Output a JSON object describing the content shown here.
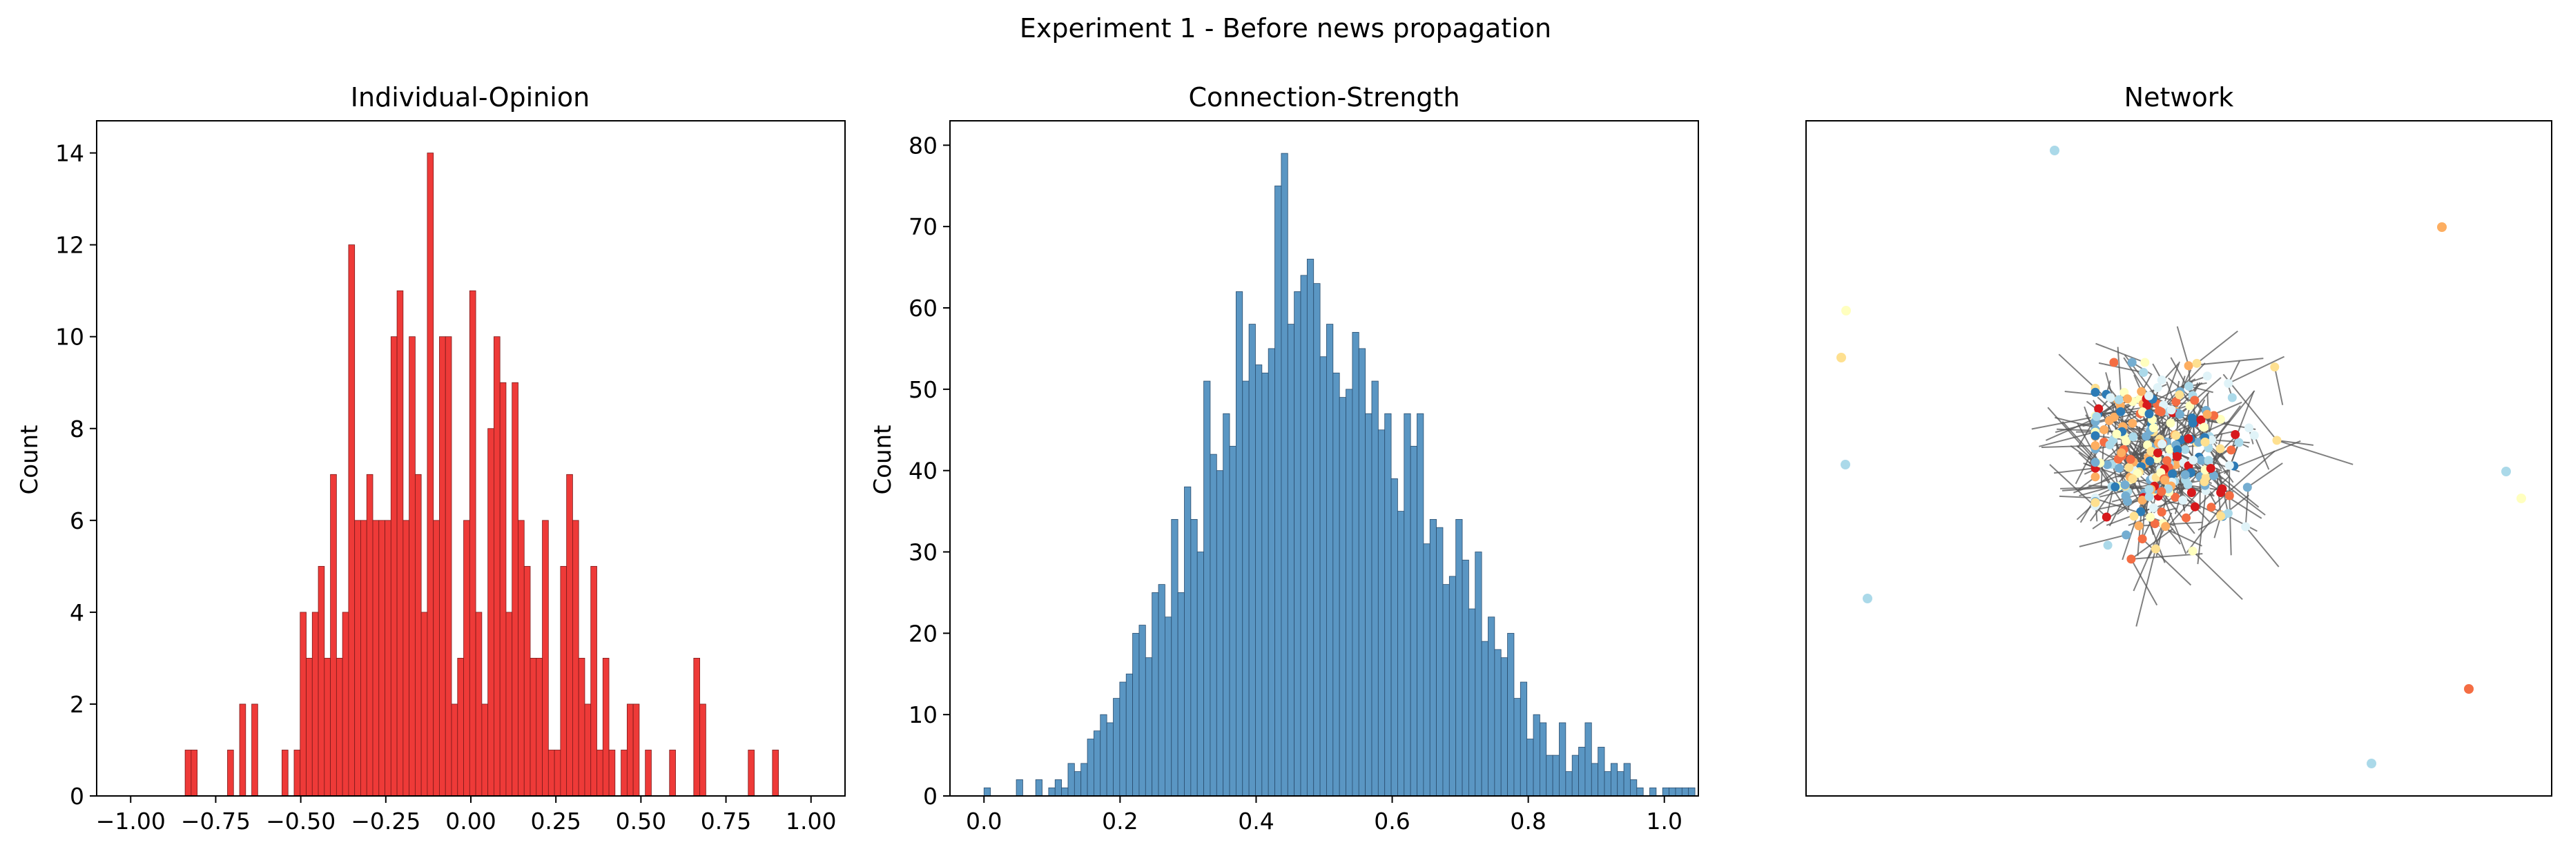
{
  "figure": {
    "suptitle": "Experiment 1 - Before news propagation"
  },
  "chart_data": [
    {
      "type": "bar",
      "title": "Individual-Opinion",
      "xlabel": "",
      "ylabel": "Count",
      "xlim": [
        -1.1,
        1.1
      ],
      "ylim": [
        0,
        14.7
      ],
      "xticks": [
        -1.0,
        -0.75,
        -0.5,
        -0.25,
        0.0,
        0.25,
        0.5,
        0.75,
        1.0
      ],
      "xtick_labels": [
        "−1.00",
        "−0.75",
        "−0.50",
        "−0.25",
        "0.00",
        "0.25",
        "0.50",
        "0.75",
        "1.00"
      ],
      "yticks": [
        0,
        2,
        4,
        6,
        8,
        10,
        12,
        14
      ],
      "ytick_labels": [
        "0",
        "2",
        "4",
        "6",
        "8",
        "10",
        "12",
        "14"
      ],
      "bar_color": "#ee3a38",
      "edge_color": "#7a1a1a",
      "grid": false,
      "bins": {
        "start": -0.84,
        "width": 0.0178,
        "counts": [
          1,
          1,
          0,
          0,
          0,
          0,
          0,
          1,
          0,
          2,
          0,
          2,
          0,
          0,
          0,
          0,
          1,
          0,
          1,
          4,
          3,
          4,
          5,
          3,
          7,
          3,
          4,
          12,
          6,
          6,
          7,
          6,
          6,
          6,
          10,
          11,
          6,
          10,
          7,
          4,
          14,
          6,
          10,
          10,
          2,
          3,
          6,
          11,
          4,
          2,
          8,
          10,
          9,
          4,
          9,
          6,
          5,
          3,
          3,
          6,
          1,
          1,
          5,
          7,
          6,
          3,
          2,
          5,
          1,
          3,
          1,
          0,
          1,
          2,
          2,
          0,
          1,
          0,
          0,
          0,
          1,
          0,
          0,
          0,
          3,
          2,
          0,
          0,
          0,
          0,
          0,
          0,
          0,
          1,
          0,
          0,
          0,
          1
        ]
      }
    },
    {
      "type": "bar",
      "title": "Connection-Strength",
      "xlabel": "",
      "ylabel": "Count",
      "xlim": [
        -0.05,
        1.05
      ],
      "ylim": [
        0,
        83
      ],
      "xticks": [
        0.0,
        0.2,
        0.4,
        0.6,
        0.8,
        1.0
      ],
      "xtick_labels": [
        "0.0",
        "0.2",
        "0.4",
        "0.6",
        "0.8",
        "1.0"
      ],
      "yticks": [
        0,
        10,
        20,
        30,
        40,
        50,
        60,
        70,
        80
      ],
      "ytick_labels": [
        "0",
        "10",
        "20",
        "30",
        "40",
        "50",
        "60",
        "70",
        "80"
      ],
      "bar_color": "#5a96c3",
      "edge_color": "#2a4d6e",
      "grid": false,
      "bins": {
        "start": 0.0,
        "width": 0.0095,
        "counts": [
          1,
          0,
          0,
          0,
          0,
          2,
          0,
          0,
          2,
          0,
          1,
          2,
          1,
          4,
          3,
          4,
          7,
          8,
          10,
          9,
          12,
          14,
          15,
          20,
          21,
          17,
          25,
          26,
          22,
          34,
          25,
          38,
          34,
          30,
          51,
          42,
          40,
          47,
          43,
          62,
          51,
          58,
          53,
          52,
          55,
          75,
          79,
          58,
          62,
          64,
          66,
          63,
          54,
          58,
          52,
          49,
          50,
          57,
          55,
          47,
          51,
          45,
          47,
          39,
          35,
          47,
          43,
          47,
          31,
          34,
          33,
          26,
          27,
          34,
          29,
          23,
          30,
          19,
          22,
          18,
          17,
          20,
          12,
          14,
          7,
          10,
          9,
          5,
          5,
          9,
          3,
          5,
          6,
          9,
          4,
          6,
          3,
          4,
          3,
          4,
          2,
          1,
          0,
          1,
          0,
          1,
          1,
          1,
          1,
          1,
          0,
          0
        ]
      }
    },
    {
      "type": "scatter",
      "title": "Network",
      "xlabel": "",
      "ylabel": "",
      "axes_visible": false,
      "ticks": false,
      "node_palette": [
        "#d7191c",
        "#fdae61",
        "#ffffbf",
        "#abd9e9",
        "#2c7bb6",
        "#f46d43",
        "#fee090",
        "#e0f3f8",
        "#74add1"
      ],
      "edge_color": "#555555"
    }
  ]
}
